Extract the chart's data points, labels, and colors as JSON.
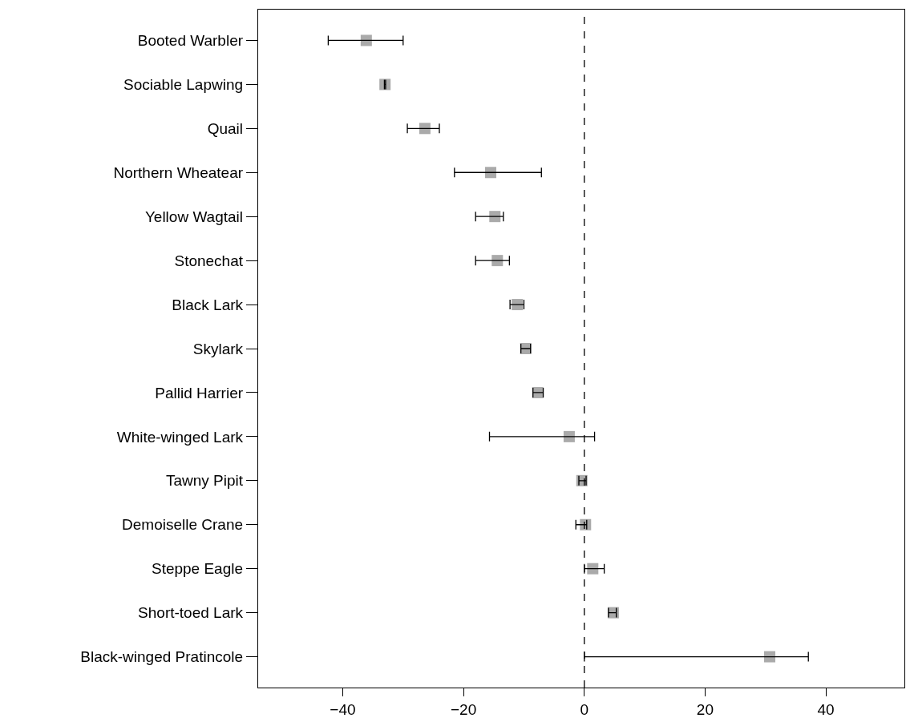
{
  "chart_data": {
    "type": "scatter",
    "orientation": "horizontal",
    "categories": [
      "Booted Warbler",
      "Sociable Lapwing",
      "Quail",
      "Northern Wheatear",
      "Yellow Wagtail",
      "Stonechat",
      "Black Lark",
      "Skylark",
      "Pallid Harrier",
      "White-winged Lark",
      "Tawny Pipit",
      "Demoiselle Crane",
      "Steppe Eagle",
      "Short-toed Lark",
      "Black-winged Pratincole"
    ],
    "values": [
      -36.1,
      -33.0,
      -26.4,
      -15.5,
      -14.8,
      -14.4,
      -11.1,
      -9.7,
      -7.7,
      -2.5,
      -0.4,
      0.2,
      1.4,
      4.8,
      30.7
    ],
    "errors": [
      [
        -42.4,
        -30.0
      ],
      [
        -33.1,
        -32.9
      ],
      [
        -29.3,
        -24.0
      ],
      [
        -21.5,
        -7.1
      ],
      [
        -18.0,
        -13.4
      ],
      [
        -18.0,
        -12.4
      ],
      [
        -12.3,
        -10.0
      ],
      [
        -10.5,
        -8.9
      ],
      [
        -8.5,
        -6.8
      ],
      [
        -15.7,
        1.7
      ],
      [
        -0.9,
        0.3
      ],
      [
        -1.4,
        0.4
      ],
      [
        0.0,
        3.3
      ],
      [
        4.0,
        5.3
      ],
      [
        0.0,
        37.1
      ]
    ],
    "color": "#aaaaaa",
    "marker": "square",
    "xlim": [
      -54,
      53
    ],
    "xticks": [
      -40,
      -20,
      0,
      20,
      40
    ],
    "ref_lines": [
      {
        "axis": "x",
        "value": 0,
        "line_style": "dashed",
        "color": "#000000"
      }
    ]
  }
}
